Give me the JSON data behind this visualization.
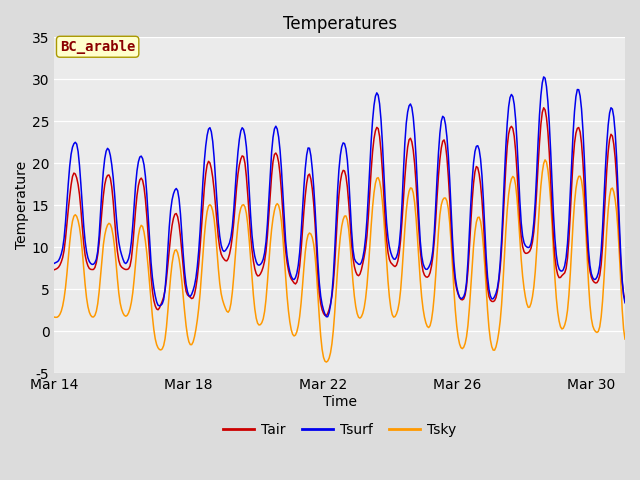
{
  "title": "Temperatures",
  "xlabel": "Time",
  "ylabel": "Temperature",
  "annotation": "BC_arable",
  "ylim": [
    -5,
    35
  ],
  "yticks": [
    -5,
    0,
    5,
    10,
    15,
    20,
    25,
    30,
    35
  ],
  "xtick_labels": [
    "Mar 14",
    "Mar 18",
    "Mar 22",
    "Mar 26",
    "Mar 30"
  ],
  "color_tair": "#cc0000",
  "color_tsurf": "#0000ee",
  "color_tsky": "#ff9900",
  "bg_color": "#dcdcdc",
  "plot_bg_color": "#ebebeb",
  "legend_labels": [
    "Tair",
    "Tsurf",
    "Tsky"
  ],
  "title_fontsize": 12,
  "axis_label_fontsize": 10,
  "tick_fontsize": 10,
  "annotation_fontsize": 10
}
